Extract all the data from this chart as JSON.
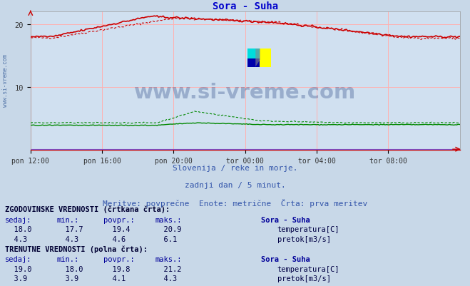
{
  "title": "Sora - Suha",
  "title_color": "#0000cc",
  "bg_color": "#d0e0f0",
  "plot_bg_color": "#d0e0f0",
  "grid_color": "#ffb0b0",
  "x_min": 0,
  "x_max": 288,
  "y_min": 0,
  "y_max": 22,
  "yticks": [
    10,
    20
  ],
  "xlabel_ticks": [
    0,
    48,
    96,
    144,
    192,
    240
  ],
  "xlabel_labels": [
    "pon 12:00",
    "pon 16:00",
    "pon 20:00",
    "tor 00:00",
    "tor 04:00",
    "tor 08:00"
  ],
  "temp_color": "#cc0000",
  "pretok_color": "#008800",
  "blue_line_color": "#6666ff",
  "watermark_text": "www.si-vreme.com",
  "watermark_color": "#1a3a7a",
  "watermark_alpha": 0.3,
  "subtitle1": "Slovenija / reke in morje.",
  "subtitle2": "zadnji dan / 5 minut.",
  "subtitle3": "Meritve: povprečne  Enote: metrične  Črta: prva meritev",
  "subtitle_color": "#3355aa",
  "footer_bg": "#c8d8e8",
  "footer_text_color": "#000044",
  "bold_color": "#000033",
  "sorasuha_color": "#000099",
  "temp_hist_current": 18.0,
  "temp_hist_min": 17.7,
  "temp_hist_avg": 19.4,
  "temp_hist_max": 20.9,
  "pretok_hist_current": 4.3,
  "pretok_hist_min": 4.3,
  "pretok_hist_avg": 4.6,
  "pretok_hist_max": 6.1,
  "temp_curr_current": 19.0,
  "temp_curr_min": 18.0,
  "temp_curr_avg": 19.8,
  "temp_curr_max": 21.2,
  "pretok_curr_current": 3.9,
  "pretok_curr_min": 3.9,
  "pretok_curr_avg": 4.1,
  "pretok_curr_max": 4.3,
  "side_label": "www.si-vreme.com",
  "side_label_color": "#5577aa",
  "red_square_color": "#cc0000",
  "green_square_color": "#008800"
}
